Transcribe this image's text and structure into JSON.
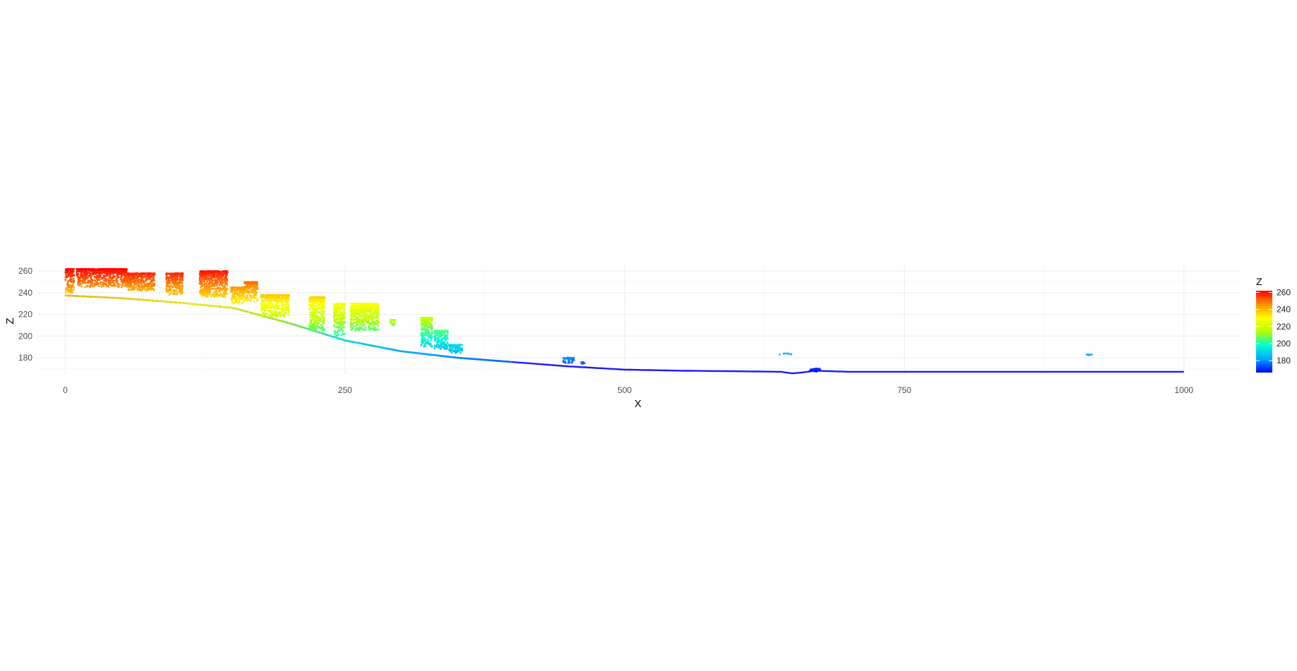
{
  "chart_data": {
    "type": "scatter",
    "title": "",
    "xlabel": "X",
    "ylabel": "Z",
    "xlim": [
      -25,
      1050
    ],
    "ylim": [
      165,
      266
    ],
    "x_ticks": [
      0,
      250,
      500,
      750,
      1000
    ],
    "x_tick_labels": [
      "0",
      "250",
      "500",
      "750",
      "1000"
    ],
    "y_ticks": [
      180,
      200,
      220,
      240,
      260
    ],
    "y_tick_labels": [
      "180",
      "200",
      "220",
      "240",
      "260"
    ],
    "grid": true,
    "legend": {
      "title": "Z",
      "type": "colorbar",
      "placement": "right",
      "range": [
        166,
        262
      ],
      "ticks": [
        180,
        200,
        220,
        240,
        260
      ],
      "tick_labels": [
        "180",
        "200",
        "220",
        "240",
        "260"
      ],
      "colors": [
        "#0000ff",
        "#00a8ff",
        "#00ffd0",
        "#b4ff00",
        "#ffff00",
        "#ff9000",
        "#ff0000"
      ]
    },
    "ground_profile": {
      "x": [
        0,
        50,
        100,
        150,
        200,
        250,
        300,
        350,
        400,
        450,
        500,
        550,
        600,
        640,
        650,
        660,
        670,
        700,
        800,
        900,
        1000
      ],
      "z": [
        237.5,
        235,
        231,
        226,
        212,
        196,
        186,
        180,
        176,
        172,
        169,
        168,
        167.5,
        167,
        165.5,
        166.5,
        168,
        167,
        167,
        167,
        167
      ]
    },
    "canopy_clusters": [
      {
        "x_range": [
          0,
          8
        ],
        "z_range": [
          240,
          262
        ]
      },
      {
        "x_range": [
          10,
          55
        ],
        "z_range": [
          245,
          262
        ]
      },
      {
        "x_range": [
          55,
          80
        ],
        "z_range": [
          242,
          258
        ]
      },
      {
        "x_range": [
          90,
          105
        ],
        "z_range": [
          238,
          258
        ]
      },
      {
        "x_range": [
          120,
          145
        ],
        "z_range": [
          236,
          260
        ]
      },
      {
        "x_range": [
          160,
          172
        ],
        "z_range": [
          232,
          250
        ]
      },
      {
        "x_range": [
          148,
          160
        ],
        "z_range": [
          230,
          245
        ]
      },
      {
        "x_range": [
          175,
          200
        ],
        "z_range": [
          218,
          238
        ]
      },
      {
        "x_range": [
          218,
          232
        ],
        "z_range": [
          205,
          236
        ]
      },
      {
        "x_range": [
          240,
          250
        ],
        "z_range": [
          200,
          230
        ]
      },
      {
        "x_range": [
          255,
          280
        ],
        "z_range": [
          205,
          230
        ]
      },
      {
        "x_range": [
          290,
          295
        ],
        "z_range": [
          210,
          215
        ]
      },
      {
        "x_range": [
          318,
          328
        ],
        "z_range": [
          190,
          217
        ]
      },
      {
        "x_range": [
          330,
          342
        ],
        "z_range": [
          188,
          205
        ]
      },
      {
        "x_range": [
          343,
          355
        ],
        "z_range": [
          184,
          192
        ]
      },
      {
        "x_range": [
          445,
          455
        ],
        "z_range": [
          175,
          180
        ]
      },
      {
        "x_range": [
          460,
          465
        ],
        "z_range": [
          174,
          176
        ]
      },
      {
        "x_range": [
          638,
          650
        ],
        "z_range": [
          183,
          184
        ]
      },
      {
        "x_range": [
          665,
          675
        ],
        "z_range": [
          167,
          170
        ]
      },
      {
        "x_range": [
          912,
          918
        ],
        "z_range": [
          182,
          183
        ]
      }
    ]
  }
}
